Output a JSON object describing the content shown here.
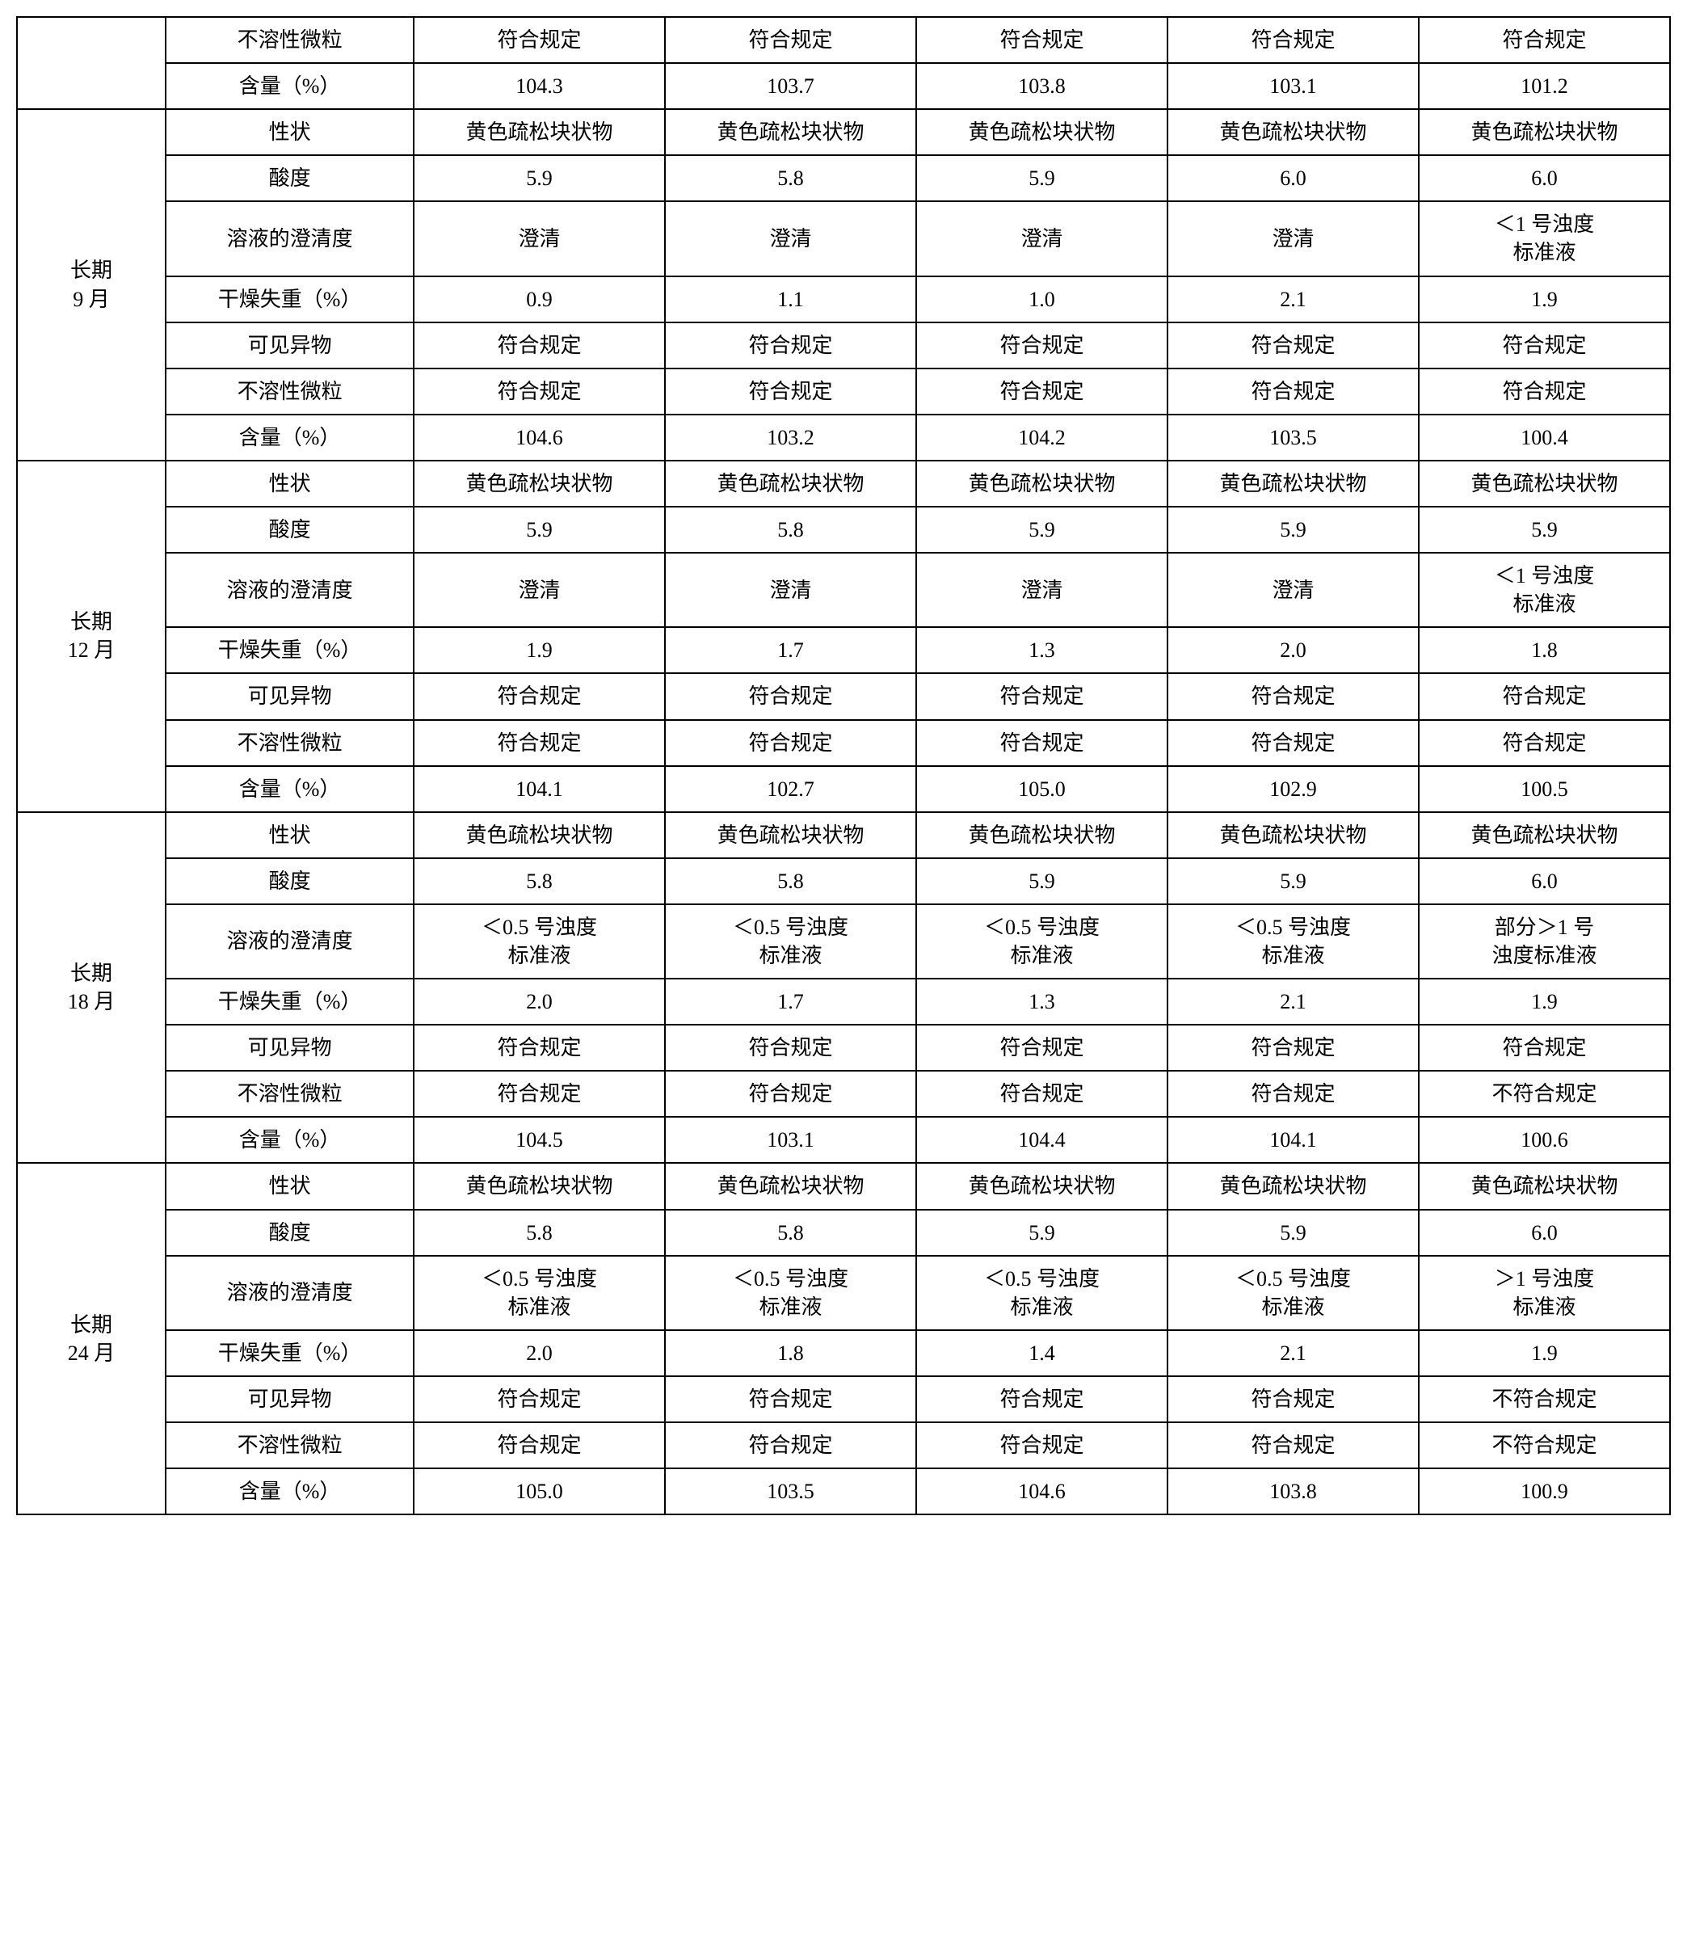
{
  "table": {
    "border_color": "#000000",
    "background_color": "#ffffff",
    "font_size_pt": 20,
    "columns": [
      {
        "key": "period",
        "width_pct": 9
      },
      {
        "key": "param",
        "width_pct": 15
      },
      {
        "key": "c1",
        "width_pct": 15.2
      },
      {
        "key": "c2",
        "width_pct": 15.2
      },
      {
        "key": "c3",
        "width_pct": 15.2
      },
      {
        "key": "c4",
        "width_pct": 15.2
      },
      {
        "key": "c5",
        "width_pct": 15.2
      }
    ],
    "top_partial": {
      "period_blank": "",
      "rows": [
        {
          "param": "不溶性微粒",
          "c1": "符合规定",
          "c2": "符合规定",
          "c3": "符合规定",
          "c4": "符合规定",
          "c5": "符合规定"
        },
        {
          "param": "含量（%）",
          "c1": "104.3",
          "c2": "103.7",
          "c3": "103.8",
          "c4": "103.1",
          "c5": "101.2"
        }
      ]
    },
    "groups": [
      {
        "period": "长期\n9 月",
        "rows": [
          {
            "param": "性状",
            "c1": "黄色疏松块状物",
            "c2": "黄色疏松块状物",
            "c3": "黄色疏松块状物",
            "c4": "黄色疏松块状物",
            "c5": "黄色疏松块状物"
          },
          {
            "param": "酸度",
            "c1": "5.9",
            "c2": "5.8",
            "c3": "5.9",
            "c4": "6.0",
            "c5": "6.0"
          },
          {
            "param": "溶液的澄清度",
            "c1": "澄清",
            "c2": "澄清",
            "c3": "澄清",
            "c4": "澄清",
            "c5": "＜1 号浊度\n标准液"
          },
          {
            "param": "干燥失重（%）",
            "c1": "0.9",
            "c2": "1.1",
            "c3": "1.0",
            "c4": "2.1",
            "c5": "1.9"
          },
          {
            "param": "可见异物",
            "c1": "符合规定",
            "c2": "符合规定",
            "c3": "符合规定",
            "c4": "符合规定",
            "c5": "符合规定"
          },
          {
            "param": "不溶性微粒",
            "c1": "符合规定",
            "c2": "符合规定",
            "c3": "符合规定",
            "c4": "符合规定",
            "c5": "符合规定"
          },
          {
            "param": "含量（%）",
            "c1": "104.6",
            "c2": "103.2",
            "c3": "104.2",
            "c4": "103.5",
            "c5": "100.4"
          }
        ]
      },
      {
        "period": "长期\n12 月",
        "rows": [
          {
            "param": "性状",
            "c1": "黄色疏松块状物",
            "c2": "黄色疏松块状物",
            "c3": "黄色疏松块状物",
            "c4": "黄色疏松块状物",
            "c5": "黄色疏松块状物"
          },
          {
            "param": "酸度",
            "c1": "5.9",
            "c2": "5.8",
            "c3": "5.9",
            "c4": "5.9",
            "c5": "5.9"
          },
          {
            "param": "溶液的澄清度",
            "c1": "澄清",
            "c2": "澄清",
            "c3": "澄清",
            "c4": "澄清",
            "c5": "＜1 号浊度\n标准液"
          },
          {
            "param": "干燥失重（%）",
            "c1": "1.9",
            "c2": "1.7",
            "c3": "1.3",
            "c4": "2.0",
            "c5": "1.8"
          },
          {
            "param": "可见异物",
            "c1": "符合规定",
            "c2": "符合规定",
            "c3": "符合规定",
            "c4": "符合规定",
            "c5": "符合规定"
          },
          {
            "param": "不溶性微粒",
            "c1": "符合规定",
            "c2": "符合规定",
            "c3": "符合规定",
            "c4": "符合规定",
            "c5": "符合规定"
          },
          {
            "param": "含量（%）",
            "c1": "104.1",
            "c2": "102.7",
            "c3": "105.0",
            "c4": "102.9",
            "c5": "100.5"
          }
        ]
      },
      {
        "period": "长期\n18 月",
        "rows": [
          {
            "param": "性状",
            "c1": "黄色疏松块状物",
            "c2": "黄色疏松块状物",
            "c3": "黄色疏松块状物",
            "c4": "黄色疏松块状物",
            "c5": "黄色疏松块状物"
          },
          {
            "param": "酸度",
            "c1": "5.8",
            "c2": "5.8",
            "c3": "5.9",
            "c4": "5.9",
            "c5": "6.0"
          },
          {
            "param": "溶液的澄清度",
            "c1": "＜0.5 号浊度\n标准液",
            "c2": "＜0.5 号浊度\n标准液",
            "c3": "＜0.5 号浊度\n标准液",
            "c4": "＜0.5 号浊度\n标准液",
            "c5": "部分＞1 号\n浊度标准液"
          },
          {
            "param": "干燥失重（%）",
            "c1": "2.0",
            "c2": "1.7",
            "c3": "1.3",
            "c4": "2.1",
            "c5": "1.9"
          },
          {
            "param": "可见异物",
            "c1": "符合规定",
            "c2": "符合规定",
            "c3": "符合规定",
            "c4": "符合规定",
            "c5": "符合规定"
          },
          {
            "param": "不溶性微粒",
            "c1": "符合规定",
            "c2": "符合规定",
            "c3": "符合规定",
            "c4": "符合规定",
            "c5": "不符合规定"
          },
          {
            "param": "含量（%）",
            "c1": "104.5",
            "c2": "103.1",
            "c3": "104.4",
            "c4": "104.1",
            "c5": "100.6"
          }
        ]
      },
      {
        "period": "长期\n24 月",
        "rows": [
          {
            "param": "性状",
            "c1": "黄色疏松块状物",
            "c2": "黄色疏松块状物",
            "c3": "黄色疏松块状物",
            "c4": "黄色疏松块状物",
            "c5": "黄色疏松块状物"
          },
          {
            "param": "酸度",
            "c1": "5.8",
            "c2": "5.8",
            "c3": "5.9",
            "c4": "5.9",
            "c5": "6.0"
          },
          {
            "param": "溶液的澄清度",
            "c1": "＜0.5 号浊度\n标准液",
            "c2": "＜0.5 号浊度\n标准液",
            "c3": "＜0.5 号浊度\n标准液",
            "c4": "＜0.5 号浊度\n标准液",
            "c5": "＞1 号浊度\n标准液"
          },
          {
            "param": "干燥失重（%）",
            "c1": "2.0",
            "c2": "1.8",
            "c3": "1.4",
            "c4": "2.1",
            "c5": "1.9"
          },
          {
            "param": "可见异物",
            "c1": "符合规定",
            "c2": "符合规定",
            "c3": "符合规定",
            "c4": "符合规定",
            "c5": "不符合规定"
          },
          {
            "param": "不溶性微粒",
            "c1": "符合规定",
            "c2": "符合规定",
            "c3": "符合规定",
            "c4": "符合规定",
            "c5": "不符合规定"
          },
          {
            "param": "含量（%）",
            "c1": "105.0",
            "c2": "103.5",
            "c3": "104.6",
            "c4": "103.8",
            "c5": "100.9"
          }
        ]
      }
    ]
  }
}
